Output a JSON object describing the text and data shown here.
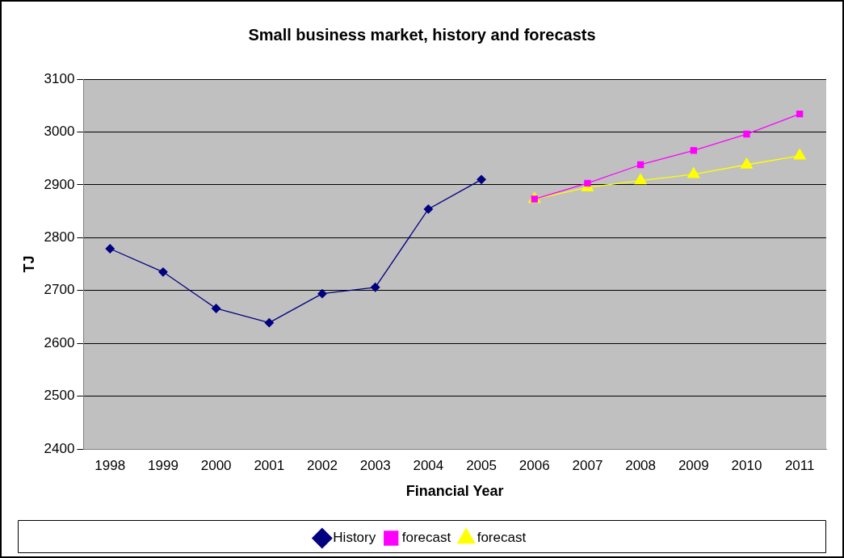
{
  "chart_data": {
    "type": "line",
    "title": "Small business market, history and forecasts",
    "xlabel": "Financial Year",
    "ylabel": "TJ",
    "categories": [
      "1998",
      "1999",
      "2000",
      "2001",
      "2002",
      "2003",
      "2004",
      "2005",
      "2006",
      "2007",
      "2008",
      "2009",
      "2010",
      "2011"
    ],
    "series": [
      {
        "name": "History",
        "color": "#000080",
        "marker": "diamond",
        "values": [
          2779,
          2735,
          2666,
          2639,
          2694,
          2706,
          2854,
          2910,
          null,
          null,
          null,
          null,
          null,
          null
        ]
      },
      {
        "name": "forecast",
        "color": "#ff00ff",
        "marker": "square",
        "values": [
          null,
          null,
          null,
          null,
          null,
          null,
          null,
          null,
          2873,
          2903,
          2938,
          2965,
          2996,
          3034
        ]
      },
      {
        "name": "forecast",
        "color": "#ffff00",
        "marker": "triangle",
        "values": [
          null,
          null,
          null,
          null,
          null,
          null,
          null,
          null,
          2873,
          2895,
          2908,
          2920,
          2938,
          2955
        ]
      }
    ],
    "ylim": [
      2400,
      3100
    ],
    "yticks": [
      2400,
      2500,
      2600,
      2700,
      2800,
      2900,
      3000,
      3100
    ],
    "grid": "y",
    "legend": "bottom"
  }
}
